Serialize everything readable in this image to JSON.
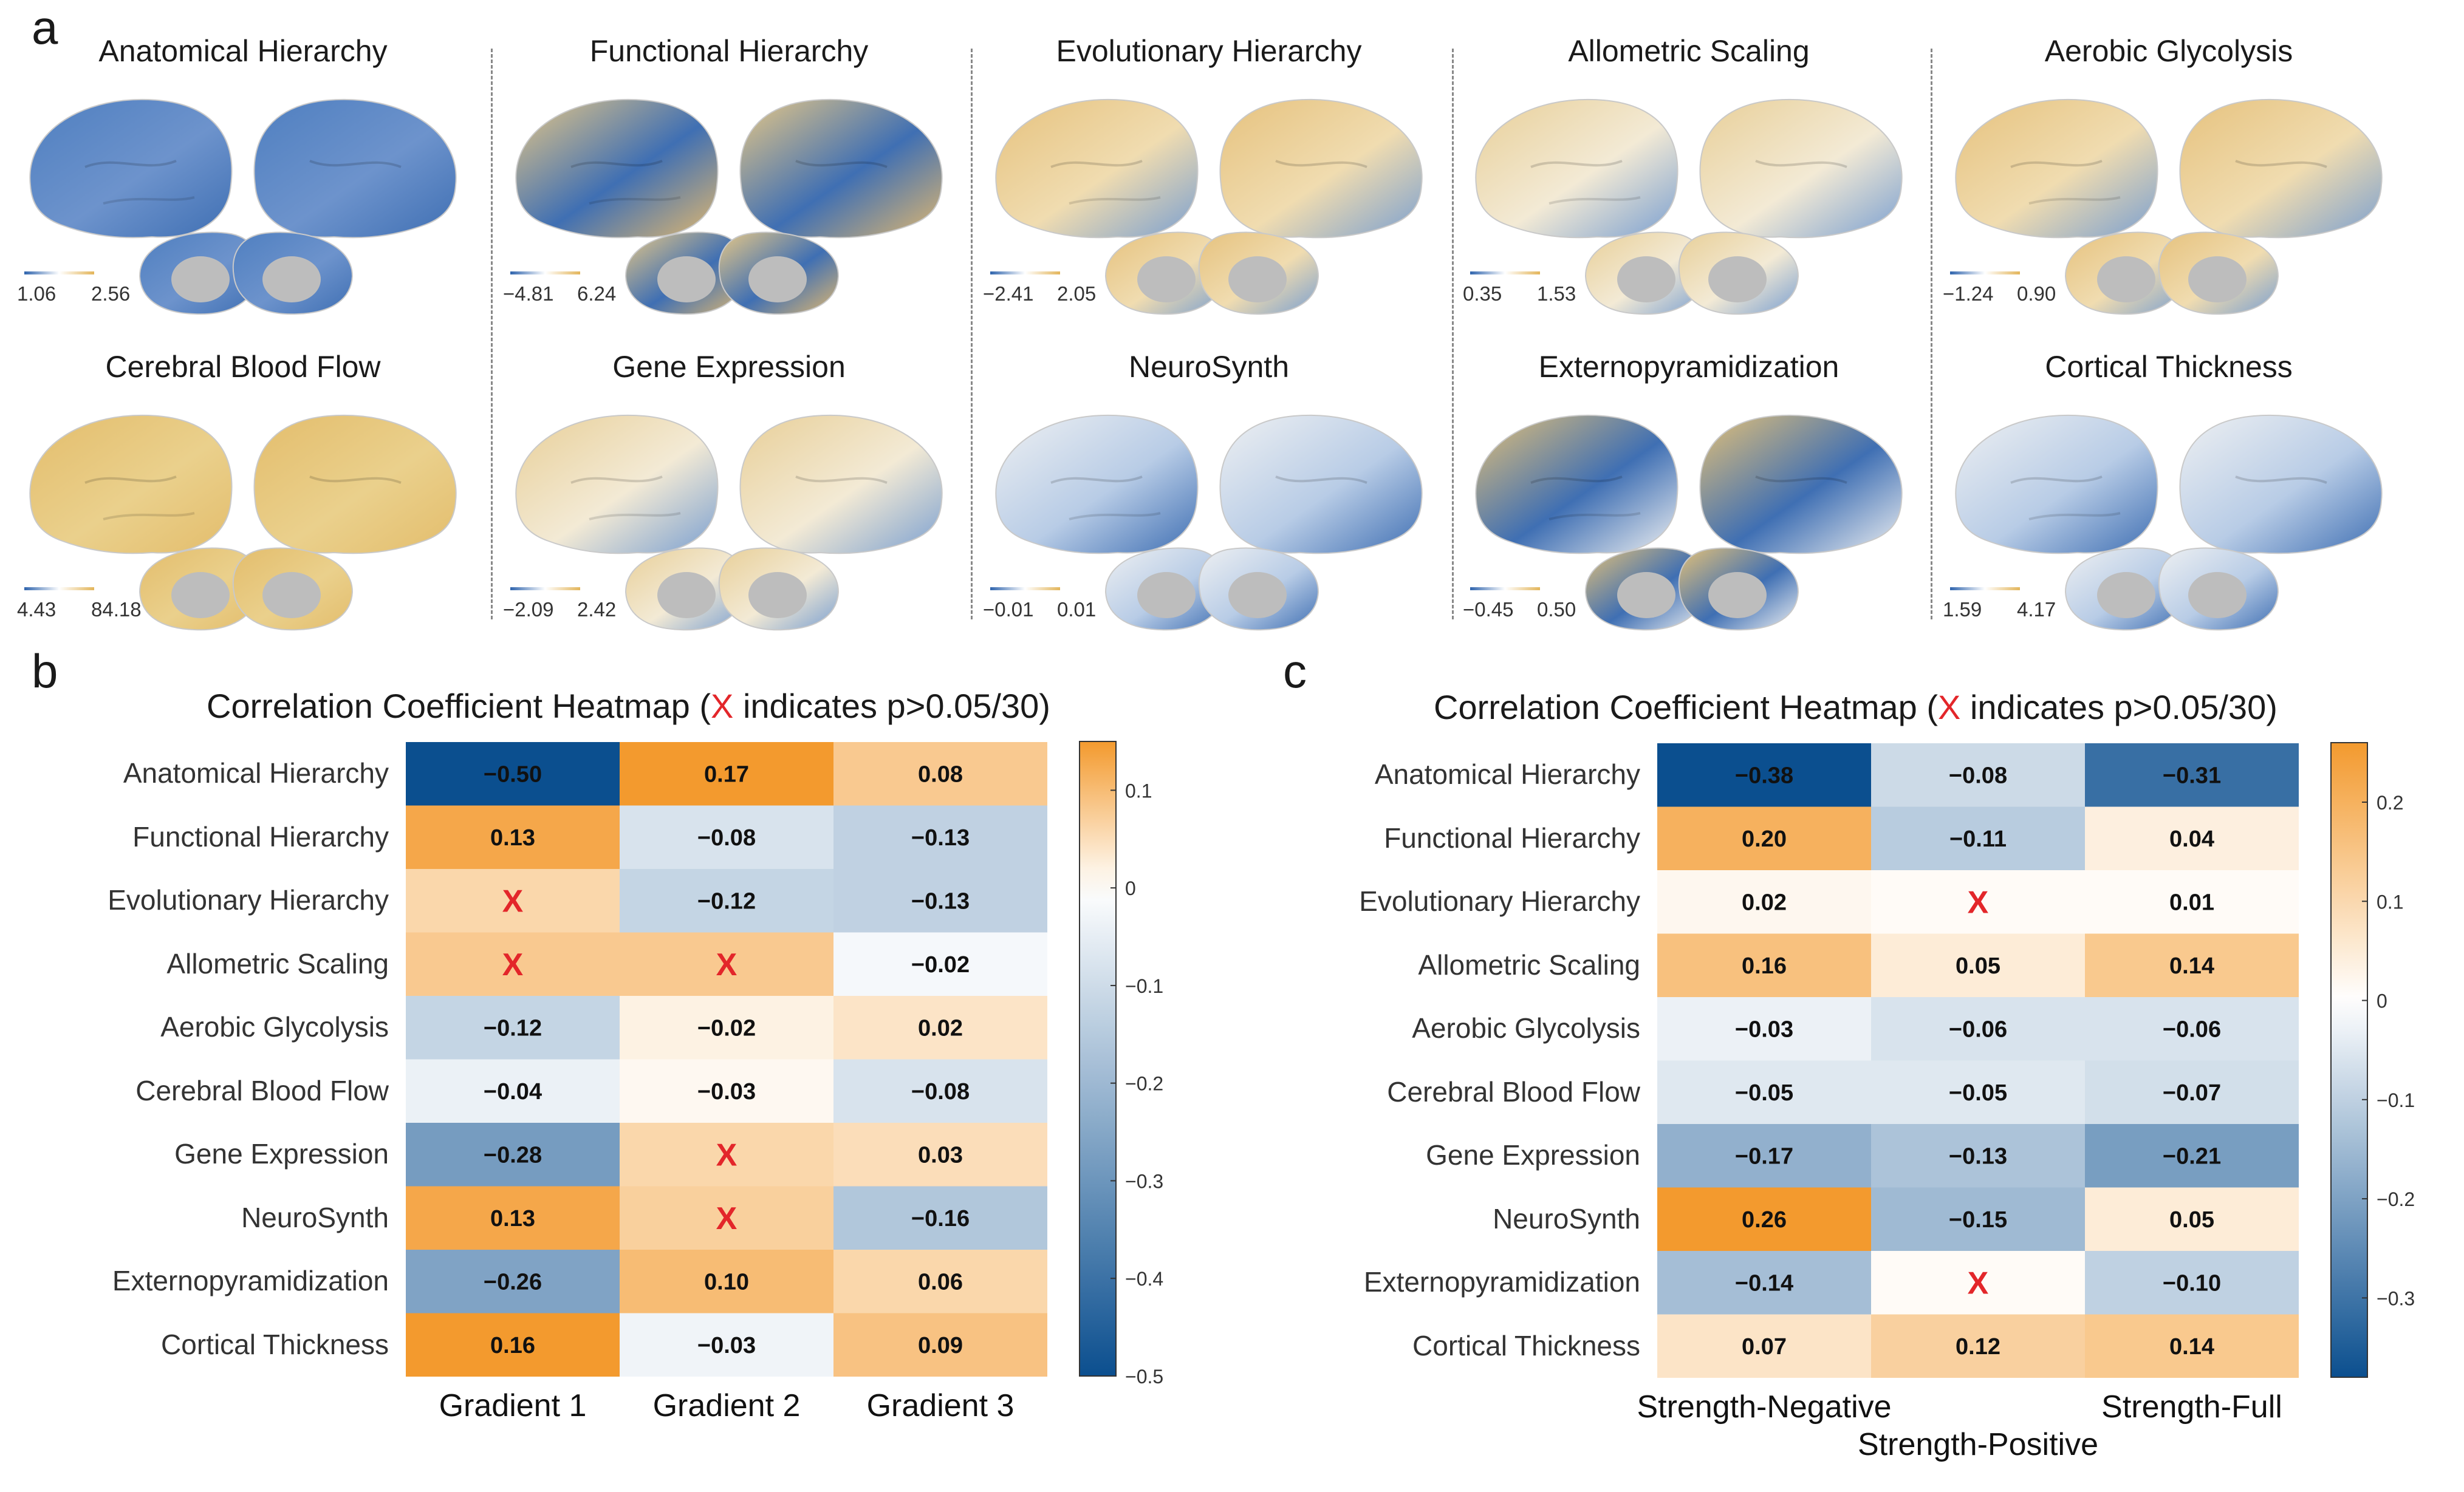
{
  "panels": {
    "a": "a",
    "b": "b",
    "c": "c"
  },
  "maps": [
    {
      "title": "Anatomical Hierarchy",
      "min": "1.06",
      "max": "2.56",
      "pattern": "blue"
    },
    {
      "title": "Functional Hierarchy",
      "min": "−4.81",
      "max": "6.24",
      "pattern": "patch"
    },
    {
      "title": "Evolutionary Hierarchy",
      "min": "−2.41",
      "max": "2.05",
      "pattern": "mostly-orange"
    },
    {
      "title": "Allometric Scaling",
      "min": "0.35",
      "max": "1.53",
      "pattern": "mixed"
    },
    {
      "title": "Aerobic Glycolysis",
      "min": "−1.24",
      "max": "0.90",
      "pattern": "mostly-orange"
    },
    {
      "title": "Cerebral Blood Flow",
      "min": "4.43",
      "max": "84.18",
      "pattern": "orange"
    },
    {
      "title": "Gene Expression",
      "min": "−2.09",
      "max": "2.42",
      "pattern": "mixed"
    },
    {
      "title": "NeuroSynth",
      "min": "−0.01",
      "max": "0.01",
      "pattern": "white-blue"
    },
    {
      "title": "Externopyramidization",
      "min": "−0.45",
      "max": "0.50",
      "pattern": "speckle"
    },
    {
      "title": "Cortical Thickness",
      "min": "1.59",
      "max": "4.17",
      "pattern": "white-blue"
    }
  ],
  "heat_b": {
    "title_prefix": "Correlation Coefficient Heatmap (",
    "title_x": "X",
    "title_suffix": " indicates p>0.05/30)"
  },
  "heat_c": {
    "title_prefix": "Correlation Coefficient Heatmap (",
    "title_x": "X",
    "title_suffix": " indicates p>0.05/30)"
  },
  "colors": {
    "orange": "#f39a2e",
    "white": "#ffffff",
    "blue": "#0b4f8f",
    "red_x": "#e3262a",
    "brain_gray": "#bdbdbd"
  },
  "chart_data": [
    {
      "type": "heatmap",
      "title": "Correlation Coefficient Heatmap (X indicates p>0.05/30)",
      "rows": [
        "Anatomical Hierarchy",
        "Functional Hierarchy",
        "Evolutionary Hierarchy",
        "Allometric Scaling",
        "Aerobic Glycolysis",
        "Cerebral Blood Flow",
        "Gene Expression",
        "NeuroSynth",
        "Externopyramidization",
        "Cortical Thickness"
      ],
      "columns": [
        "Gradient 1",
        "Gradient 2",
        "Gradient 3"
      ],
      "values": [
        [
          -0.5,
          0.17,
          0.08
        ],
        [
          0.13,
          -0.08,
          -0.13
        ],
        [
          null,
          -0.12,
          -0.13
        ],
        [
          null,
          null,
          -0.02
        ],
        [
          -0.12,
          -0.02,
          0.02
        ],
        [
          -0.04,
          -0.03,
          -0.08
        ],
        [
          -0.28,
          null,
          0.03
        ],
        [
          0.13,
          null,
          -0.16
        ],
        [
          -0.26,
          0.1,
          0.06
        ],
        [
          0.16,
          -0.03,
          0.09
        ]
      ],
      "labels": [
        [
          "−0.50",
          "0.17",
          "0.08"
        ],
        [
          "0.13",
          "−0.08",
          "−0.13"
        ],
        [
          "X",
          "−0.12",
          "−0.13"
        ],
        [
          "X",
          "X",
          "−0.02"
        ],
        [
          "−0.12",
          "−0.02",
          "0.02"
        ],
        [
          "−0.04",
          "−0.03",
          "−0.08"
        ],
        [
          "−0.28",
          "X",
          "0.03"
        ],
        [
          "0.13",
          "X",
          "−0.16"
        ],
        [
          "−0.26",
          "0.10",
          "0.06"
        ],
        [
          "0.16",
          "−0.03",
          "0.09"
        ]
      ],
      "cell_colors": [
        [
          -0.5,
          0.17,
          0.08
        ],
        [
          0.13,
          -0.08,
          -0.13
        ],
        [
          0.06,
          -0.12,
          -0.13
        ],
        [
          0.08,
          0.08,
          -0.02
        ],
        [
          -0.12,
          0.02,
          0.04
        ],
        [
          -0.04,
          0.01,
          -0.08
        ],
        [
          -0.28,
          0.06,
          0.05
        ],
        [
          0.13,
          0.07,
          -0.16
        ],
        [
          -0.26,
          0.1,
          0.06
        ],
        [
          0.16,
          -0.03,
          0.09
        ]
      ],
      "colorbar": {
        "range": [
          -0.5,
          0.15
        ],
        "ticks": [
          0.1,
          0,
          -0.1,
          -0.2,
          -0.3,
          -0.4,
          -0.5
        ],
        "tick_labels": [
          "0.1",
          "0",
          "−0.1",
          "−0.2",
          "−0.3",
          "−0.4",
          "−0.5"
        ]
      }
    },
    {
      "type": "heatmap",
      "title": "Correlation Coefficient Heatmap (X indicates p>0.05/30)",
      "rows": [
        "Anatomical Hierarchy",
        "Functional Hierarchy",
        "Evolutionary Hierarchy",
        "Allometric Scaling",
        "Aerobic Glycolysis",
        "Cerebral Blood Flow",
        "Gene Expression",
        "NeuroSynth",
        "Externopyramidization",
        "Cortical Thickness"
      ],
      "columns": [
        "Strength-Negative",
        "Strength-Positive",
        "Strength-Full"
      ],
      "values": [
        [
          -0.38,
          -0.08,
          -0.31
        ],
        [
          0.2,
          -0.11,
          0.04
        ],
        [
          0.02,
          null,
          0.01
        ],
        [
          0.16,
          0.05,
          0.14
        ],
        [
          -0.03,
          -0.06,
          -0.06
        ],
        [
          -0.05,
          -0.05,
          -0.07
        ],
        [
          -0.17,
          -0.13,
          -0.21
        ],
        [
          0.26,
          -0.15,
          0.05
        ],
        [
          -0.14,
          null,
          -0.1
        ],
        [
          0.07,
          0.12,
          0.14
        ]
      ],
      "labels": [
        [
          "−0.38",
          "−0.08",
          "−0.31"
        ],
        [
          "0.20",
          "−0.11",
          "0.04"
        ],
        [
          "0.02",
          "X",
          "0.01"
        ],
        [
          "0.16",
          "0.05",
          "0.14"
        ],
        [
          "−0.03",
          "−0.06",
          "−0.06"
        ],
        [
          "−0.05",
          "−0.05",
          "−0.07"
        ],
        [
          "−0.17",
          "−0.13",
          "−0.21"
        ],
        [
          "0.26",
          "−0.15",
          "0.05"
        ],
        [
          "−0.14",
          "X",
          "−0.10"
        ],
        [
          "0.07",
          "0.12",
          "0.14"
        ]
      ],
      "cell_colors": [
        [
          -0.38,
          -0.08,
          -0.31
        ],
        [
          0.2,
          -0.11,
          0.04
        ],
        [
          0.02,
          0.01,
          0.01
        ],
        [
          0.16,
          0.05,
          0.14
        ],
        [
          -0.03,
          -0.06,
          -0.06
        ],
        [
          -0.05,
          -0.05,
          -0.07
        ],
        [
          -0.17,
          -0.13,
          -0.21
        ],
        [
          0.26,
          -0.15,
          0.05
        ],
        [
          -0.14,
          0.01,
          -0.1
        ],
        [
          0.07,
          0.12,
          0.14
        ]
      ],
      "colorbar": {
        "range": [
          -0.38,
          0.26
        ],
        "ticks": [
          0.2,
          0.1,
          0,
          -0.1,
          -0.2,
          -0.3
        ],
        "tick_labels": [
          "0.2",
          "0.1",
          "0",
          "−0.1",
          "−0.2",
          "−0.3"
        ]
      }
    }
  ]
}
